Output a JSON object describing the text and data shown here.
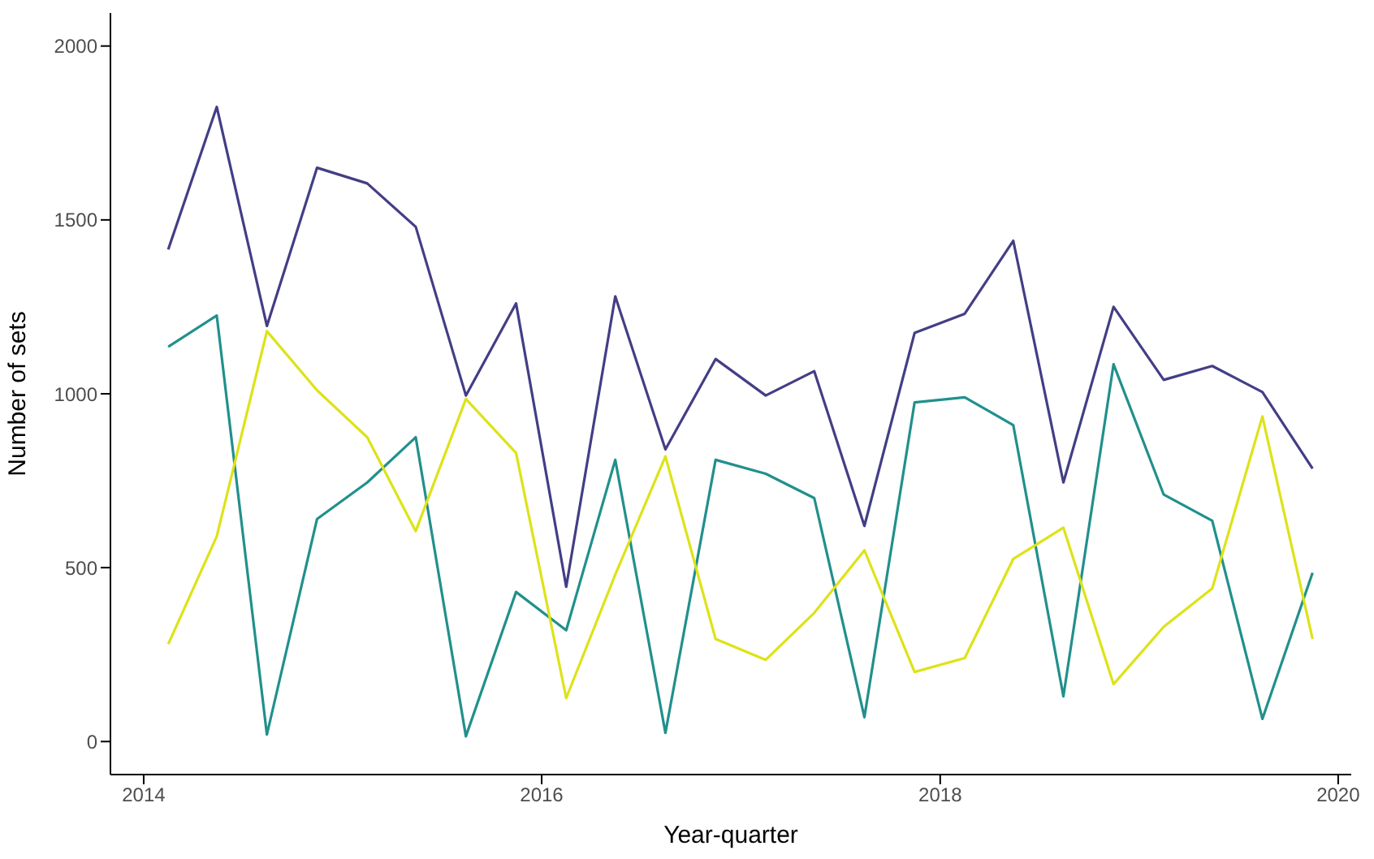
{
  "chart_data": {
    "type": "line",
    "xlabel": "Year-quarter",
    "ylabel": "Number of sets",
    "x": [
      "2014-02-15",
      "2014-05-15",
      "2014-08-15",
      "2014-11-15",
      "2015-02-15",
      "2015-05-15",
      "2015-08-15",
      "2015-11-15",
      "2016-02-15",
      "2016-05-15",
      "2016-08-15",
      "2016-11-15",
      "2017-02-15",
      "2017-05-15",
      "2017-08-15",
      "2017-11-15",
      "2018-02-15",
      "2018-05-15",
      "2018-08-15",
      "2018-11-15",
      "2019-02-15",
      "2019-05-15",
      "2019-08-15",
      "2019-11-15"
    ],
    "series": [
      {
        "color": "#433e85",
        "values": [
          1415,
          1825,
          1195,
          1650,
          1605,
          1480,
          995,
          1260,
          445,
          1280,
          840,
          1100,
          995,
          1065,
          620,
          1175,
          1230,
          1440,
          745,
          1250,
          1040,
          1080,
          1005,
          785
        ]
      },
      {
        "color": "#21908c",
        "values": [
          1135,
          1225,
          20,
          640,
          745,
          875,
          15,
          430,
          320,
          810,
          25,
          810,
          770,
          700,
          70,
          975,
          990,
          910,
          130,
          1085,
          710,
          635,
          65,
          485
        ]
      },
      {
        "color": "#dde318",
        "values": [
          280,
          590,
          1180,
          1010,
          875,
          605,
          985,
          830,
          125,
          480,
          820,
          295,
          235,
          370,
          550,
          200,
          240,
          525,
          615,
          165,
          330,
          440,
          935,
          295
        ]
      }
    ],
    "xlim": [
      "2013-11-01",
      "2020-01-25"
    ],
    "xticks": [
      "2014",
      "2016",
      "2018",
      "2020"
    ],
    "ylim": [
      -95,
      2095
    ],
    "yticks": [
      0,
      500,
      1000,
      1500,
      2000
    ],
    "grid": false,
    "legend": false,
    "marker": "none",
    "line_style": "solid"
  }
}
